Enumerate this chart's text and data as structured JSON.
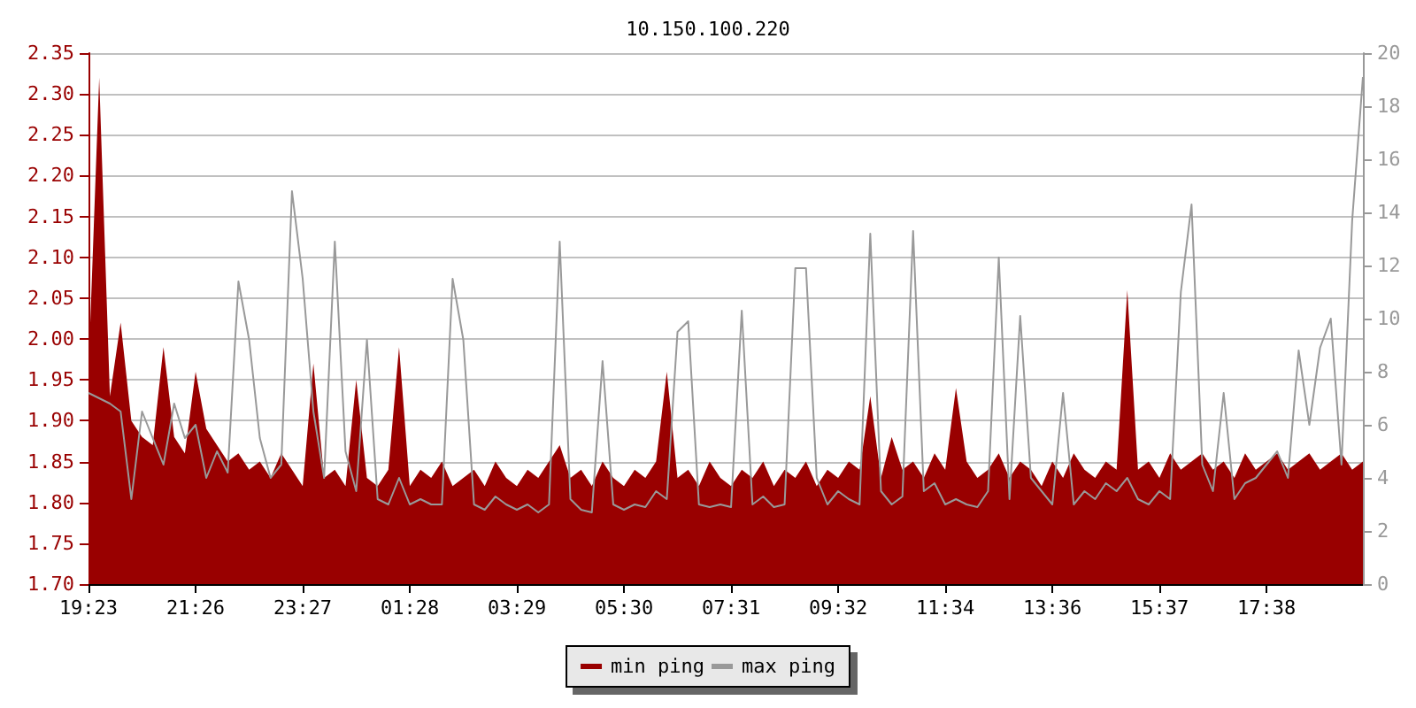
{
  "chart_data": {
    "type": "area",
    "title": "10.150.100.220",
    "categories": [
      "19:23",
      null,
      null,
      null,
      null,
      null,
      null,
      null,
      null,
      null,
      "21:26",
      null,
      null,
      null,
      null,
      null,
      null,
      null,
      null,
      null,
      "23:27",
      null,
      null,
      null,
      null,
      null,
      null,
      null,
      null,
      null,
      "01:28",
      null,
      null,
      null,
      null,
      null,
      null,
      null,
      null,
      null,
      "03:29",
      null,
      null,
      null,
      null,
      null,
      null,
      null,
      null,
      null,
      "05:30",
      null,
      null,
      null,
      null,
      null,
      null,
      null,
      null,
      null,
      "07:31",
      null,
      null,
      null,
      null,
      null,
      null,
      null,
      null,
      null,
      "09:32",
      null,
      null,
      null,
      null,
      null,
      null,
      null,
      null,
      null,
      "11:34",
      null,
      null,
      null,
      null,
      null,
      null,
      null,
      null,
      null,
      "13:36",
      null,
      null,
      null,
      null,
      null,
      null,
      null,
      null,
      null,
      "15:37",
      null,
      null,
      null,
      null,
      null,
      null,
      null,
      null,
      null,
      "17:38",
      null,
      null,
      null,
      null,
      null,
      null,
      null,
      null,
      null
    ],
    "series": [
      {
        "name": "min ping",
        "color": "#990000",
        "values": [
          1.96,
          2.32,
          1.93,
          2.02,
          1.9,
          1.88,
          1.87,
          1.99,
          1.88,
          1.86,
          1.96,
          1.89,
          1.87,
          1.85,
          1.86,
          1.84,
          1.85,
          1.83,
          1.86,
          1.84,
          1.82,
          1.97,
          1.83,
          1.84,
          1.82,
          1.95,
          1.83,
          1.82,
          1.84,
          1.99,
          1.82,
          1.84,
          1.83,
          1.85,
          1.82,
          1.83,
          1.84,
          1.82,
          1.85,
          1.83,
          1.82,
          1.84,
          1.83,
          1.85,
          1.87,
          1.83,
          1.84,
          1.82,
          1.85,
          1.83,
          1.82,
          1.84,
          1.83,
          1.85,
          1.96,
          1.83,
          1.84,
          1.82,
          1.85,
          1.83,
          1.82,
          1.84,
          1.83,
          1.85,
          1.82,
          1.84,
          1.83,
          1.85,
          1.82,
          1.84,
          1.83,
          1.85,
          1.84,
          1.93,
          1.83,
          1.88,
          1.84,
          1.85,
          1.83,
          1.86,
          1.84,
          1.94,
          1.85,
          1.83,
          1.84,
          1.86,
          1.83,
          1.85,
          1.84,
          1.82,
          1.85,
          1.83,
          1.86,
          1.84,
          1.83,
          1.85,
          1.84,
          2.06,
          1.84,
          1.85,
          1.83,
          1.86,
          1.84,
          1.85,
          1.86,
          1.84,
          1.85,
          1.83,
          1.86,
          1.84,
          1.85,
          1.86,
          1.84,
          1.85,
          1.86,
          1.84,
          1.85,
          1.86,
          1.84,
          1.85
        ]
      },
      {
        "name": "max ping",
        "type": "line",
        "axis": "y2",
        "color": "#999999",
        "values": [
          7.2,
          7.0,
          6.8,
          6.5,
          3.2,
          6.5,
          5.5,
          4.5,
          6.8,
          5.5,
          6.0,
          4.0,
          5.0,
          4.2,
          11.4,
          9.2,
          5.5,
          4.0,
          4.5,
          14.8,
          11.5,
          6.5,
          4.0,
          12.9,
          5.0,
          3.5,
          9.2,
          3.2,
          3.0,
          4.0,
          3.0,
          3.2,
          3.0,
          3.0,
          11.5,
          9.2,
          3.0,
          2.8,
          3.3,
          3.0,
          2.8,
          3.0,
          2.7,
          3.0,
          12.9,
          3.2,
          2.8,
          2.7,
          8.4,
          3.0,
          2.8,
          3.0,
          2.9,
          3.5,
          3.2,
          9.5,
          9.9,
          3.0,
          2.9,
          3.0,
          2.9,
          10.3,
          3.0,
          3.3,
          2.9,
          3.0,
          11.9,
          11.9,
          4.0,
          3.0,
          3.5,
          3.2,
          3.0,
          13.2,
          3.5,
          3.0,
          3.3,
          13.3,
          3.5,
          3.8,
          3.0,
          3.2,
          3.0,
          2.9,
          3.5,
          12.3,
          3.2,
          10.1,
          4.0,
          3.5,
          3.0,
          7.2,
          3.0,
          3.5,
          3.2,
          3.8,
          3.5,
          4.0,
          3.2,
          3.0,
          3.5,
          3.2,
          11.0,
          14.3,
          4.5,
          3.5,
          7.2,
          3.2,
          3.8,
          4.0,
          4.5,
          5.0,
          4.0,
          8.8,
          6.0,
          8.9,
          10.0,
          4.5,
          13.7,
          19.1
        ]
      }
    ],
    "ylim": [
      1.7,
      2.35
    ],
    "yticks": [
      {
        "value": 1.7,
        "label": "1.70"
      },
      {
        "value": 1.75,
        "label": "1.75"
      },
      {
        "value": 1.8,
        "label": "1.80"
      },
      {
        "value": 1.85,
        "label": "1.85"
      },
      {
        "value": 1.9,
        "label": "1.90"
      },
      {
        "value": 1.95,
        "label": "1.95"
      },
      {
        "value": 2.0,
        "label": "2.00"
      },
      {
        "value": 2.05,
        "label": "2.05"
      },
      {
        "value": 2.1,
        "label": "2.10"
      },
      {
        "value": 2.15,
        "label": "2.15"
      },
      {
        "value": 2.2,
        "label": "2.20"
      },
      {
        "value": 2.25,
        "label": "2.25"
      },
      {
        "value": 2.3,
        "label": "2.30"
      },
      {
        "value": 2.35,
        "label": "2.35"
      }
    ],
    "y2lim": [
      0,
      20
    ],
    "y2ticks": [
      0,
      2,
      4,
      6,
      8,
      10,
      12,
      14,
      16,
      18,
      20
    ],
    "grid": "y",
    "legend": "bottom",
    "marker": "none"
  }
}
